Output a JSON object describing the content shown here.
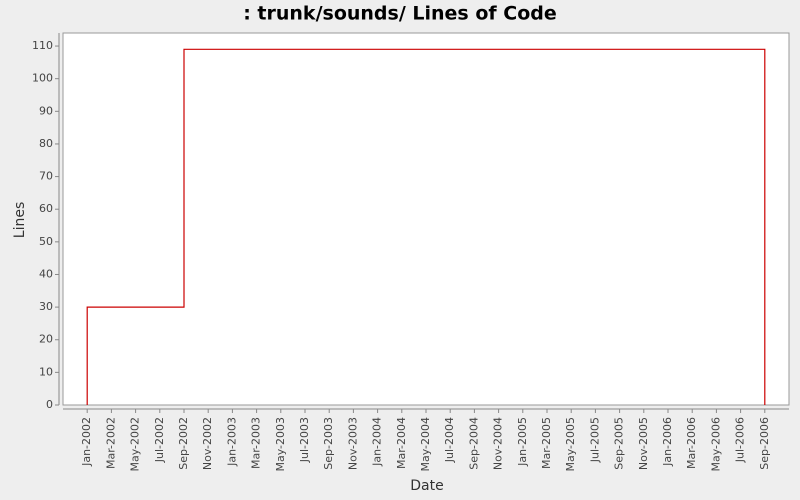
{
  "chart_data": {
    "type": "line",
    "title": ": trunk/sounds/ Lines of Code",
    "x_label": "Date",
    "y_label": "Lines",
    "x": [
      "2002-01",
      "2002-01",
      "2002-09",
      "2002-09",
      "2006-09",
      "2006-09"
    ],
    "series": [
      {
        "color": "#cc0000",
        "values": [
          0,
          30,
          30,
          109,
          109,
          0
        ]
      }
    ],
    "xlim": [
      "2001-11",
      "2006-11"
    ],
    "xticks": [
      {
        "value": "2002-01",
        "label": "Jan-2002"
      },
      {
        "value": "2002-03",
        "label": "Mar-2002"
      },
      {
        "value": "2002-05",
        "label": "May-2002"
      },
      {
        "value": "2002-07",
        "label": "Jul-2002"
      },
      {
        "value": "2002-09",
        "label": "Sep-2002"
      },
      {
        "value": "2002-11",
        "label": "Nov-2002"
      },
      {
        "value": "2003-01",
        "label": "Jan-2003"
      },
      {
        "value": "2003-03",
        "label": "Mar-2003"
      },
      {
        "value": "2003-05",
        "label": "May-2003"
      },
      {
        "value": "2003-07",
        "label": "Jul-2003"
      },
      {
        "value": "2003-09",
        "label": "Sep-2003"
      },
      {
        "value": "2003-11",
        "label": "Nov-2003"
      },
      {
        "value": "2004-01",
        "label": "Jan-2004"
      },
      {
        "value": "2004-03",
        "label": "Mar-2004"
      },
      {
        "value": "2004-05",
        "label": "May-2004"
      },
      {
        "value": "2004-07",
        "label": "Jul-2004"
      },
      {
        "value": "2004-09",
        "label": "Sep-2004"
      },
      {
        "value": "2004-11",
        "label": "Nov-2004"
      },
      {
        "value": "2005-01",
        "label": "Jan-2005"
      },
      {
        "value": "2005-03",
        "label": "Mar-2005"
      },
      {
        "value": "2005-05",
        "label": "May-2005"
      },
      {
        "value": "2005-07",
        "label": "Jul-2005"
      },
      {
        "value": "2005-09",
        "label": "Sep-2005"
      },
      {
        "value": "2005-11",
        "label": "Nov-2005"
      },
      {
        "value": "2006-01",
        "label": "Jan-2006"
      },
      {
        "value": "2006-03",
        "label": "Mar-2006"
      },
      {
        "value": "2006-05",
        "label": "May-2006"
      },
      {
        "value": "2006-07",
        "label": "Jul-2006"
      },
      {
        "value": "2006-09",
        "label": "Sep-2006"
      }
    ],
    "ylim": [
      0,
      114
    ],
    "yticks": [
      0,
      10,
      20,
      30,
      40,
      50,
      60,
      70,
      80,
      90,
      100,
      110
    ],
    "grid": false
  }
}
